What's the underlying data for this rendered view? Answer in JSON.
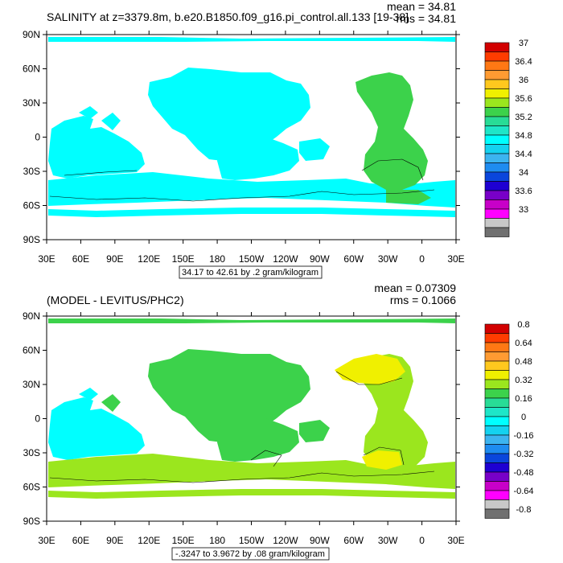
{
  "charts": [
    {
      "title": "SALINITY at z=3379.8m, b.e20.B1850.f09_g16.pi_control.all.133 [19-38]",
      "mean_label": "mean = 34.81",
      "rms_label": "rms = 34.81",
      "range_note": "34.17 to 42.61 by .2 gram/kilogram",
      "colorbar_labels": [
        "37",
        "36.4",
        "36",
        "35.6",
        "35.2",
        "34.8",
        "34.4",
        "34",
        "33.6",
        "33"
      ]
    },
    {
      "title": "(MODEL - LEVITUS/PHC2)",
      "mean_label": "mean = 0.07309",
      "rms_label": "rms = 0.1066",
      "range_note": "-.3247 to 3.9672 by .08 gram/kilogram",
      "colorbar_labels": [
        "0.8",
        "0.64",
        "0.48",
        "0.32",
        "0.16",
        "0",
        "-0.16",
        "-0.32",
        "-0.48",
        "-0.64",
        "-0.8"
      ]
    }
  ],
  "axes": {
    "lat_labels": [
      "90N",
      "60N",
      "30N",
      "0",
      "30S",
      "60S",
      "90S"
    ],
    "lon_labels": [
      "30E",
      "60E",
      "90E",
      "120E",
      "150E",
      "180",
      "150W",
      "120W",
      "90W",
      "60W",
      "30W",
      "0",
      "30E"
    ]
  },
  "chart_data": [
    {
      "type": "heatmap",
      "title": "SALINITY at z=3379.8m, b.e20.B1850.f09_g16.pi_control.all.133 [19-38]",
      "variable": "salinity",
      "units": "gram/kilogram",
      "mean": 34.81,
      "rms": 34.81,
      "min": 34.17,
      "max": 42.61,
      "contour_interval": 0.2,
      "xlim": [
        30,
        390
      ],
      "ylim": [
        -90,
        90
      ],
      "colorbar_levels": [
        33,
        33.2,
        33.4,
        33.6,
        33.8,
        34,
        34.2,
        34.4,
        34.6,
        34.8,
        35,
        35.2,
        35.4,
        35.6,
        35.8,
        36,
        36.2,
        36.4,
        36.6,
        36.8,
        37
      ],
      "dominant_values": {
        "pacific_indian": 34.7,
        "atlantic": 34.9
      }
    },
    {
      "type": "heatmap",
      "title": "(MODEL - LEVITUS/PHC2)",
      "variable": "salinity difference",
      "units": "gram/kilogram",
      "mean": 0.07309,
      "rms": 0.1066,
      "min": -0.3247,
      "max": 3.9672,
      "contour_interval": 0.08,
      "xlim": [
        30,
        390
      ],
      "ylim": [
        -90,
        90
      ],
      "colorbar_levels": [
        -0.8,
        -0.72,
        -0.64,
        -0.56,
        -0.48,
        -0.4,
        -0.32,
        -0.24,
        -0.16,
        -0.08,
        0,
        0.08,
        0.16,
        0.24,
        0.32,
        0.4,
        0.48,
        0.56,
        0.64,
        0.72,
        0.8
      ],
      "dominant_values": {
        "north_pacific": 0.04,
        "southern_ocean": 0.12,
        "north_atlantic": 0.3,
        "indian_west": -0.04
      }
    }
  ],
  "colors": {
    "sal_scale": [
      "#707070",
      "#c8c8c8",
      "#ff00ff",
      "#c800c8",
      "#7800c8",
      "#1e00d2",
      "#0a46dc",
      "#1e8cf0",
      "#3cb4f0",
      "#14d2f0",
      "#00ffff",
      "#1ee6c8",
      "#28dc96",
      "#3cd24b",
      "#9be61e",
      "#f0f000",
      "#ffc81e",
      "#ff9b32",
      "#ff7814",
      "#ff3c00",
      "#d20000"
    ],
    "diff_scale": [
      "#707070",
      "#c8c8c8",
      "#ff00ff",
      "#c800c8",
      "#7800c8",
      "#1e00d2",
      "#0a46dc",
      "#1e8cf0",
      "#3cb4f0",
      "#14d2f0",
      "#00ffff",
      "#1ee6c8",
      "#28dc96",
      "#3cd24b",
      "#9be61e",
      "#f0f000",
      "#ffc81e",
      "#ff9b32",
      "#ff7814",
      "#ff3c00",
      "#d20000"
    ]
  }
}
